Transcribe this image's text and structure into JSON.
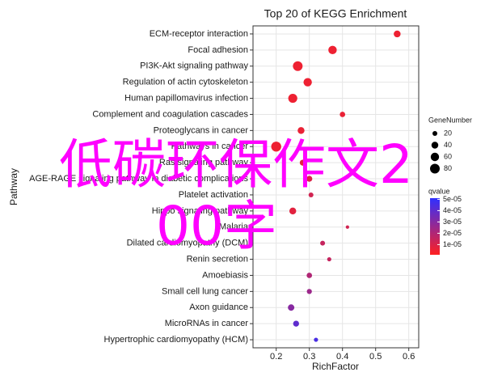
{
  "chart_data": {
    "type": "bubble",
    "title": "Top 20 of KEGG Enrichment",
    "x_label": "RichFactor",
    "y_label": "Pathway",
    "categories": [
      "ECM-receptor interaction",
      "Focal adhesion",
      "PI3K-Akt signaling pathway",
      "Regulation of actin cytoskeleton",
      "Human papillomavirus infection",
      "Complement and coagulation cascades",
      "Proteoglycans in cancer",
      "Pathways in cancer",
      "Ras signaling pathway",
      "AGE-RAGE signaling pathway in diabetic complications",
      "Platelet activation",
      "Hippo signaling pathway",
      "Malaria",
      "Dilated cardiomyopathy (DCM)",
      "Renin secretion",
      "Amoebiasis",
      "Small cell lung cancer",
      "Axon guidance",
      "MicroRNAs in cancer",
      "Hypertrophic cardiomyopathy (HCM)"
    ],
    "rich_factor": [
      0.565,
      0.37,
      0.265,
      0.295,
      0.25,
      0.4,
      0.275,
      0.2,
      0.28,
      0.3,
      0.305,
      0.25,
      0.415,
      0.34,
      0.36,
      0.3,
      0.3,
      0.245,
      0.26,
      0.32
    ],
    "gene_number": [
      40,
      60,
      80,
      60,
      70,
      25,
      40,
      85,
      30,
      30,
      20,
      40,
      10,
      20,
      15,
      25,
      22,
      35,
      30,
      15
    ],
    "qvalue": [
      5e-06,
      5e-06,
      5e-06,
      5e-06,
      5e-06,
      6e-06,
      6e-06,
      5e-06,
      8e-06,
      1e-05,
      1.2e-05,
      8e-06,
      1.2e-05,
      1.5e-05,
      1.5e-05,
      2e-05,
      2.5e-05,
      3e-05,
      4e-05,
      4.5e-05
    ],
    "xlim": [
      0.13,
      0.63
    ],
    "xticks": [
      0.2,
      0.3,
      0.4,
      0.5,
      0.6
    ],
    "grid": true,
    "size_legend_title": "GeneNumber",
    "size_legend": [
      20,
      40,
      60,
      80
    ],
    "color_legend_title": "qvalue",
    "qlim": [
      1e-06,
      5.1e-05
    ],
    "color_low": "#ff2020",
    "color_high": "#3030ff",
    "color_ticks": [
      {
        "value": 5e-05,
        "label": "5e-05"
      },
      {
        "value": 4e-05,
        "label": "4e-05"
      },
      {
        "value": 3e-05,
        "label": "3e-05"
      },
      {
        "value": 2e-05,
        "label": "2e-05"
      },
      {
        "value": 1e-05,
        "label": "1e-05"
      }
    ],
    "watermark": [
      "低碳环保作文2",
      "00字"
    ]
  }
}
